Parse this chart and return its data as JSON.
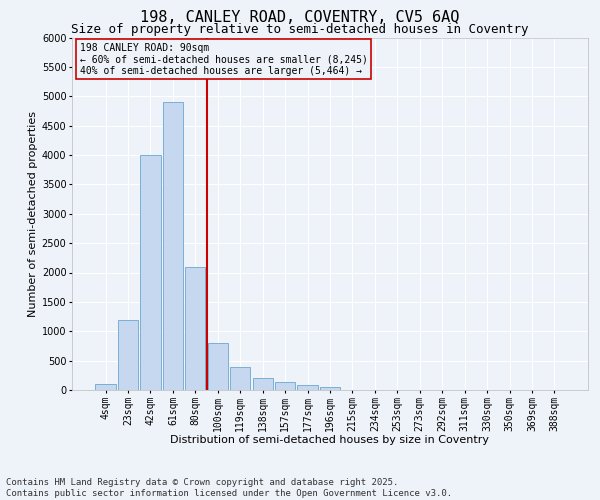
{
  "title1": "198, CANLEY ROAD, COVENTRY, CV5 6AQ",
  "title2": "Size of property relative to semi-detached houses in Coventry",
  "xlabel": "Distribution of semi-detached houses by size in Coventry",
  "ylabel": "Number of semi-detached properties",
  "annotation_text_line1": "198 CANLEY ROAD: 90sqm",
  "annotation_text_line2": "← 60% of semi-detached houses are smaller (8,245)",
  "annotation_text_line3": "40% of semi-detached houses are larger (5,464) →",
  "bar_color": "#c5d8f0",
  "bar_edge_color": "#7bafd4",
  "vline_color": "#cc0000",
  "box_edge_color": "#cc0000",
  "background_color": "#eef2f9",
  "grid_color": "#ffffff",
  "categories": [
    "4sqm",
    "23sqm",
    "42sqm",
    "61sqm",
    "80sqm",
    "100sqm",
    "119sqm",
    "138sqm",
    "157sqm",
    "177sqm",
    "196sqm",
    "215sqm",
    "234sqm",
    "253sqm",
    "273sqm",
    "292sqm",
    "311sqm",
    "330sqm",
    "350sqm",
    "369sqm",
    "388sqm"
  ],
  "values": [
    100,
    1200,
    4000,
    4900,
    2100,
    800,
    400,
    200,
    130,
    80,
    50,
    0,
    0,
    0,
    0,
    0,
    0,
    0,
    0,
    0,
    0
  ],
  "ylim": [
    0,
    6000
  ],
  "yticks": [
    0,
    500,
    1000,
    1500,
    2000,
    2500,
    3000,
    3500,
    4000,
    4500,
    5000,
    5500,
    6000
  ],
  "vline_x": 4.5,
  "footer": "Contains HM Land Registry data © Crown copyright and database right 2025.\nContains public sector information licensed under the Open Government Licence v3.0.",
  "title_fontsize": 11,
  "subtitle_fontsize": 9,
  "axis_label_fontsize": 8,
  "tick_fontsize": 7,
  "annot_fontsize": 7,
  "footer_fontsize": 6.5
}
